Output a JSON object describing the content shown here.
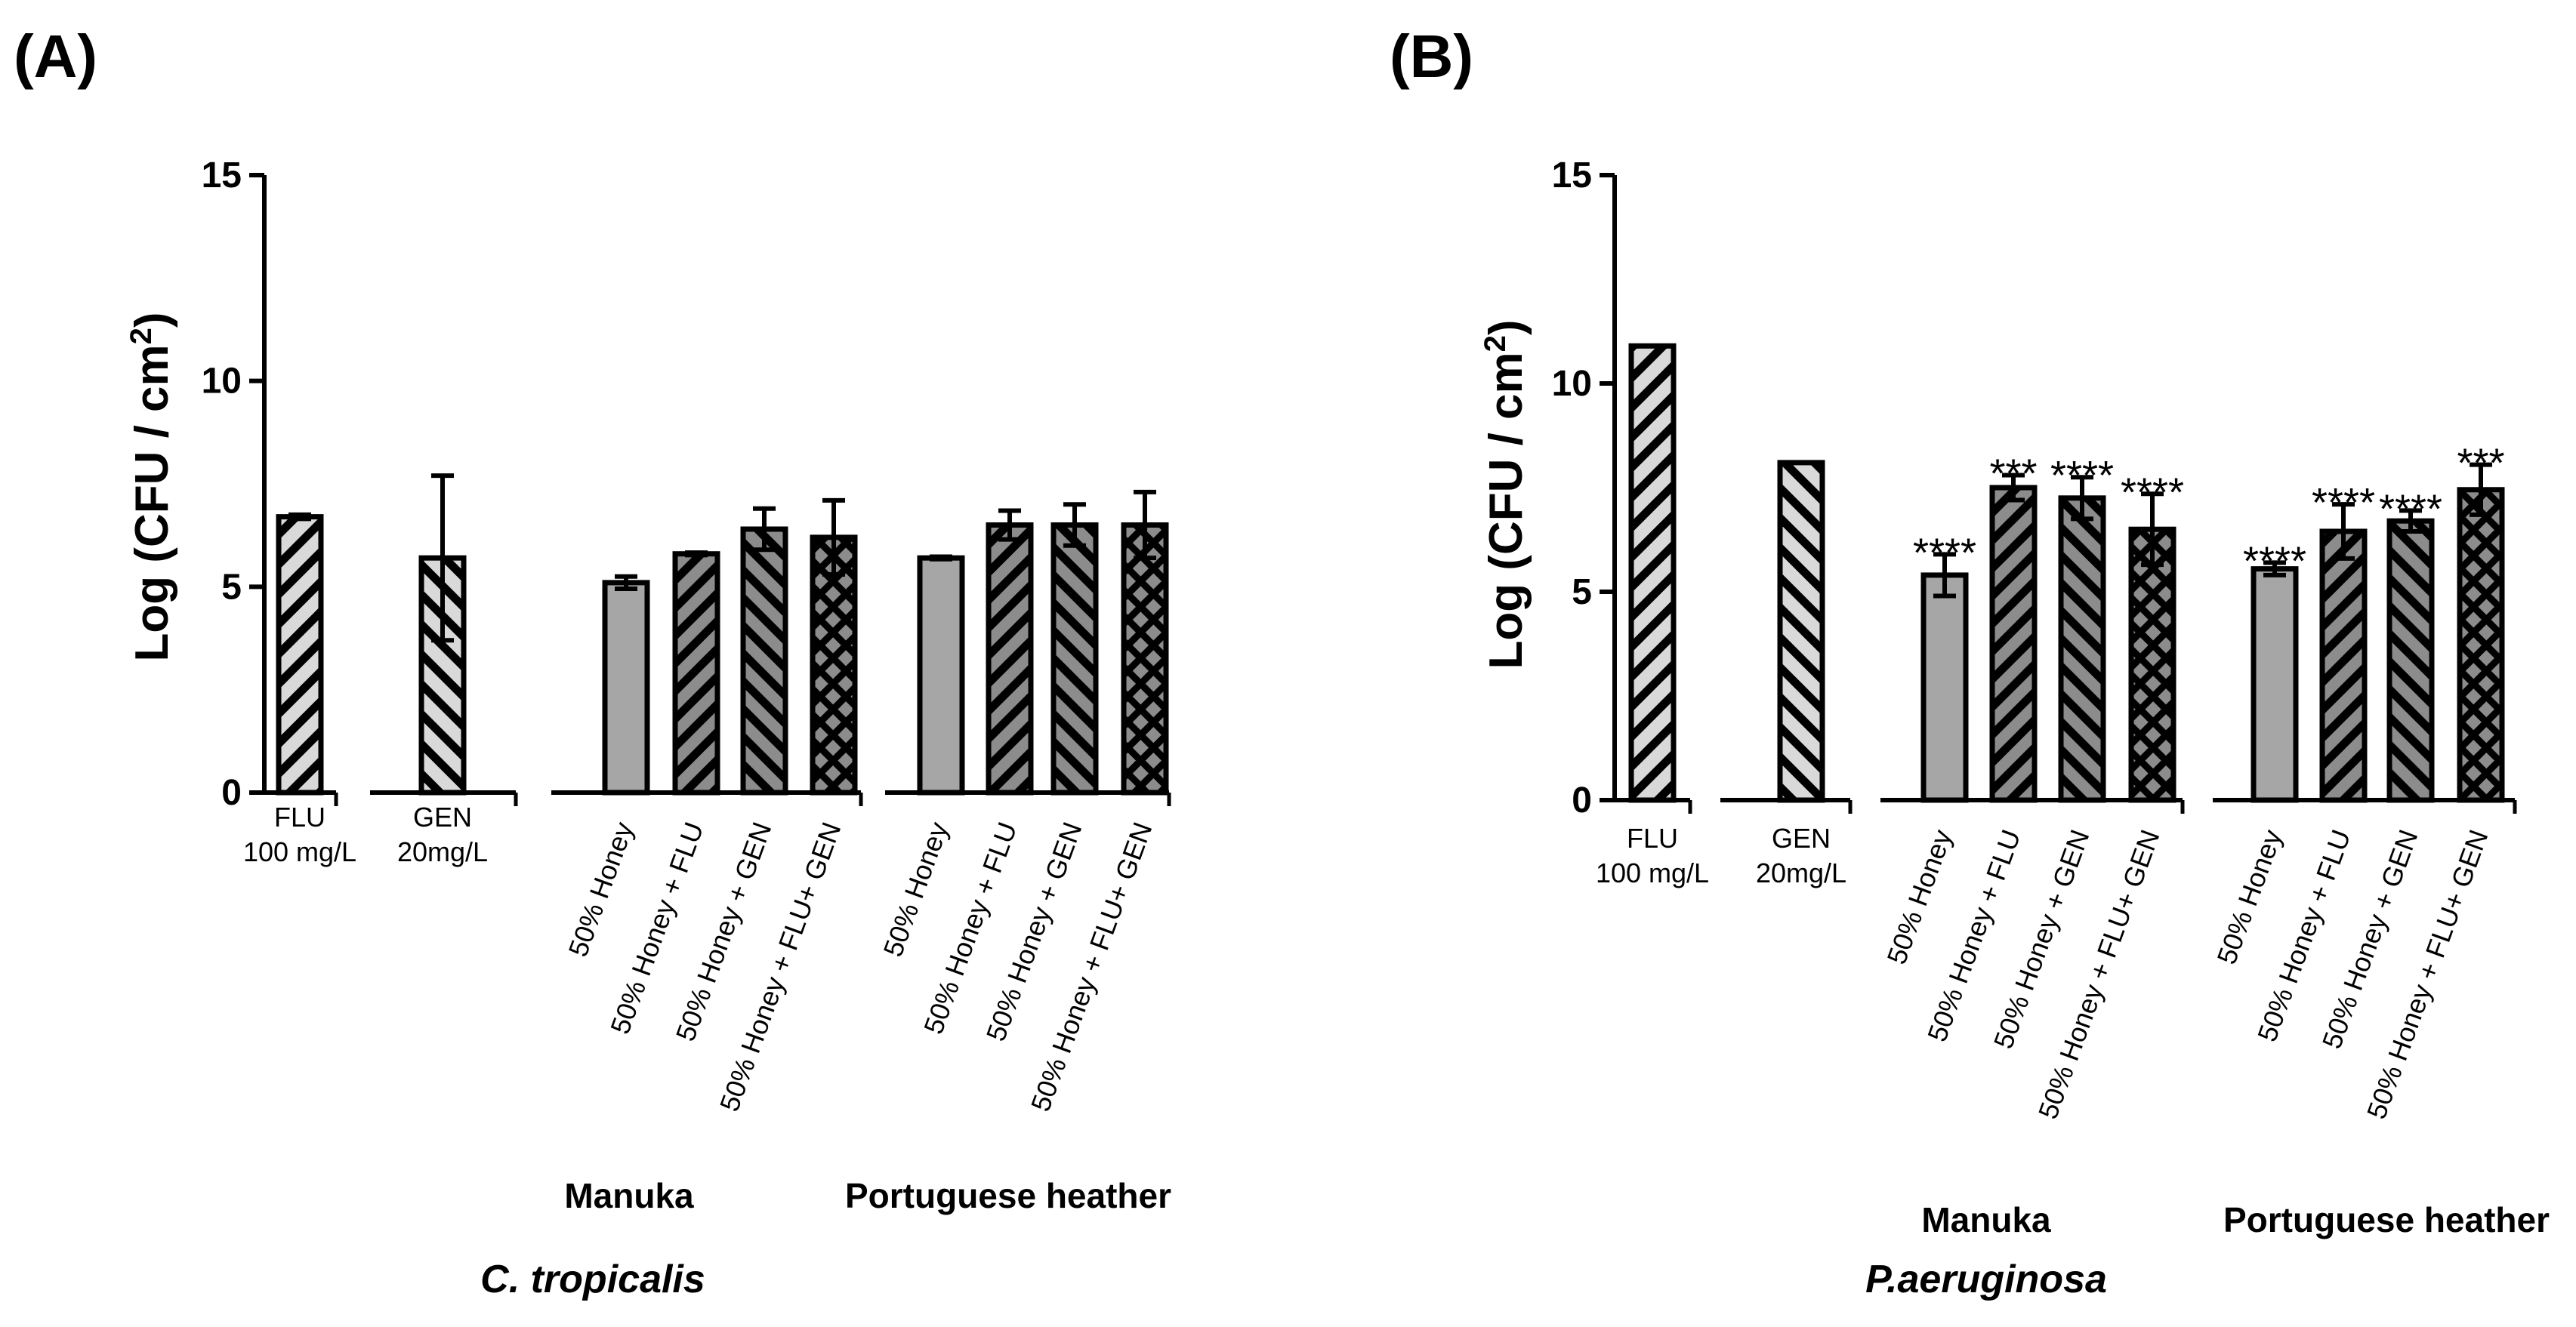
{
  "chart_data": [
    {
      "type": "bar",
      "panel_label": "(A)",
      "ylabel": "Log (CFU / cm",
      "ylabel_sup": "2",
      "ylabel_close": ")",
      "ylim": [
        0,
        15
      ],
      "yticks": [
        "0",
        "5",
        "10",
        "15"
      ],
      "species": "C. tropicalis",
      "bars": [
        {
          "label": "FLU",
          "label2": "100 mg/L",
          "value": 6.7,
          "error": 0.05,
          "fill": "diag",
          "sig": ""
        },
        {
          "label": "GEN",
          "label2": "20mg/L",
          "value": 5.7,
          "error": 2.0,
          "fill": "anti",
          "sig": ""
        },
        {
          "label": "50% Honey",
          "value": 5.1,
          "error": 0.15,
          "fill": "gray",
          "sig": ""
        },
        {
          "label": "50% Honey + FLU",
          "value": 5.8,
          "error": 0.03,
          "fill": "diag_dark",
          "sig": ""
        },
        {
          "label": "50% Honey + GEN",
          "value": 6.4,
          "error": 0.5,
          "fill": "anti_dark",
          "sig": ""
        },
        {
          "label": "50% Honey + FLU+ GEN",
          "value": 6.2,
          "error": 0.9,
          "fill": "cross",
          "sig": ""
        },
        {
          "label": "50% Honey",
          "value": 5.7,
          "error": 0.03,
          "fill": "gray",
          "sig": ""
        },
        {
          "label": "50% Honey + FLU",
          "value": 6.5,
          "error": 0.35,
          "fill": "diag_dark",
          "sig": ""
        },
        {
          "label": "50% Honey + GEN",
          "value": 6.5,
          "error": 0.5,
          "fill": "anti_dark",
          "sig": ""
        },
        {
          "label": "50% Honey + FLU+ GEN",
          "value": 6.5,
          "error": 0.8,
          "fill": "cross",
          "sig": ""
        }
      ],
      "groups": [
        "Manuka",
        "Portuguese heather"
      ]
    },
    {
      "type": "bar",
      "panel_label": "(B)",
      "ylabel": "Log (CFU / cm",
      "ylabel_sup": "2",
      "ylabel_close": ")",
      "ylim": [
        0,
        15
      ],
      "yticks": [
        "0",
        "5",
        "10",
        "15"
      ],
      "species": "P.aeruginosa",
      "bars": [
        {
          "label": "FLU",
          "label2": "100 mg/L",
          "value": 10.9,
          "error": 0,
          "fill": "diag",
          "sig": ""
        },
        {
          "label": "GEN",
          "label2": "20mg/L",
          "value": 8.1,
          "error": 0,
          "fill": "anti",
          "sig": ""
        },
        {
          "label": "50% Honey",
          "value": 5.4,
          "error": 0.5,
          "fill": "gray",
          "sig": "****"
        },
        {
          "label": "50% Honey + FLU",
          "value": 7.5,
          "error": 0.3,
          "fill": "diag_dark",
          "sig": "***"
        },
        {
          "label": "50% Honey + GEN",
          "value": 7.25,
          "error": 0.5,
          "fill": "anti_dark",
          "sig": "****"
        },
        {
          "label": "50% Honey + FLU+ GEN",
          "value": 6.5,
          "error": 0.85,
          "fill": "cross",
          "sig": "****"
        },
        {
          "label": "50% Honey",
          "value": 5.55,
          "error": 0.15,
          "fill": "gray",
          "sig": "****"
        },
        {
          "label": "50% Honey + FLU",
          "value": 6.45,
          "error": 0.65,
          "fill": "diag_dark",
          "sig": "****"
        },
        {
          "label": "50% Honey + GEN",
          "value": 6.7,
          "error": 0.25,
          "fill": "anti_dark",
          "sig": "****"
        },
        {
          "label": "50% Honey + FLU+ GEN",
          "value": 7.45,
          "error": 0.6,
          "fill": "cross",
          "sig": "***"
        }
      ],
      "groups": [
        "Manuka",
        "Portuguese heather"
      ]
    }
  ],
  "colors": {
    "light_fill": "#d9d9d9",
    "gray_fill": "#a6a6a6",
    "dark_fill": "#8c8c8c",
    "stroke": "#000000"
  }
}
